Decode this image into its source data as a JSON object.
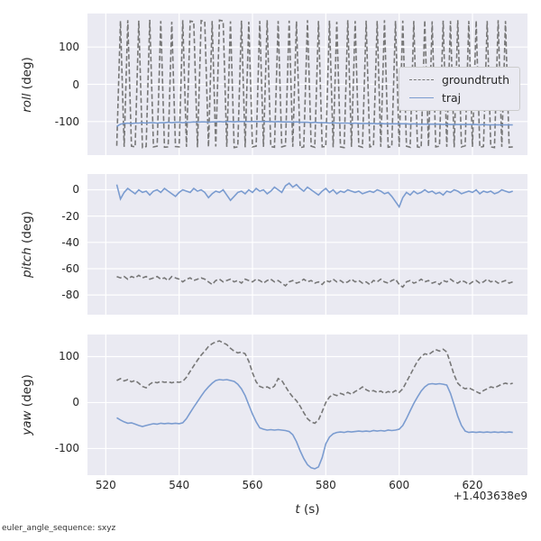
{
  "chart_data": {
    "type": "line",
    "xlabel": "t (s)",
    "xlabel_var": "t",
    "xlabel_rest": " (s)",
    "x_axis_offset": "+1.403638e9",
    "footer_annotation": "euler_angle_sequence: sxyz",
    "xlim": [
      515,
      635
    ],
    "xticks": [
      520,
      540,
      560,
      580,
      600,
      620
    ],
    "x_start": 523,
    "x_step": 1,
    "n_points": 109,
    "grid": true,
    "legend_entries": [
      "groundtruth",
      "traj"
    ],
    "legend_position": "center-right of roll subplot",
    "colors": {
      "groundtruth": "#777777",
      "traj": "#7b9cd0",
      "axes_background": "#eaeaf2",
      "grid": "#ffffff"
    },
    "styles": {
      "groundtruth": "dashed",
      "traj": "solid"
    },
    "subplots": [
      {
        "name": "roll",
        "ylabel": "roll (deg)",
        "ylabel_var": "roll",
        "ylabel_rest": " (deg)",
        "ylim": [
          -190,
          190
        ],
        "yticks": [
          100,
          0,
          -100
        ],
        "series": {
          "groundtruth": [
            -165,
            170,
            -168,
            172,
            -166,
            -168,
            171,
            -170,
            -167,
            173,
            -168,
            -166,
            170,
            -169,
            -168,
            168,
            -167,
            -168,
            172,
            -168,
            170,
            168,
            -169,
            171,
            169,
            -168,
            170,
            -167,
            172,
            170,
            -168,
            169,
            -170,
            -168,
            171,
            -169,
            168,
            -168,
            -166,
            170,
            -168,
            172,
            -167,
            -169,
            170,
            -168,
            -165,
            171,
            -168,
            169,
            -170,
            -168,
            172,
            -166,
            -169,
            170,
            -168,
            -167,
            171,
            -169,
            168,
            -168,
            -170,
            172,
            -168,
            170,
            -166,
            -169,
            171,
            -168,
            -165,
            170,
            -168,
            172,
            -169,
            -167,
            170,
            -168,
            171,
            -166,
            -169,
            170,
            -168,
            -170,
            172,
            -167,
            169,
            -168,
            -166,
            171,
            -168,
            170,
            -169,
            172,
            -168,
            -165,
            170,
            -168,
            171,
            -169,
            -167,
            170,
            -168,
            -170,
            172,
            -168,
            170,
            -169,
            -168
          ],
          "traj": [
            -113,
            -107,
            -105,
            -104,
            -105,
            -104,
            -104,
            -103,
            -104,
            -103,
            -103,
            -104,
            -103,
            -103,
            -102,
            -103,
            -102,
            -102,
            -103,
            -102,
            -102,
            -101,
            -102,
            -101,
            -101,
            -102,
            -101,
            -101,
            -100,
            -101,
            -100,
            -100,
            -101,
            -100,
            -100,
            -100,
            -100,
            -100,
            -100,
            -100,
            -100,
            -100,
            -100,
            -101,
            -100,
            -101,
            -101,
            -101,
            -102,
            -101,
            -102,
            -102,
            -102,
            -103,
            -102,
            -103,
            -103,
            -103,
            -104,
            -103,
            -104,
            -104,
            -104,
            -104,
            -105,
            -104,
            -105,
            -105,
            -105,
            -105,
            -105,
            -106,
            -105,
            -106,
            -106,
            -106,
            -106,
            -106,
            -106,
            -106,
            -107,
            -106,
            -107,
            -107,
            -107,
            -107,
            -107,
            -107,
            -107,
            -108,
            -107,
            -108,
            -108,
            -108,
            -108,
            -108,
            -108,
            -108,
            -108,
            -109,
            -108,
            -109,
            -109,
            -109,
            -109,
            -109,
            -109,
            -109,
            -109
          ]
        }
      },
      {
        "name": "pitch",
        "ylabel": "pitch (deg)",
        "ylabel_var": "pitch",
        "ylabel_rest": " (deg)",
        "ylim": [
          -95,
          12
        ],
        "yticks": [
          0,
          -20,
          -40,
          -60,
          -80
        ],
        "series": {
          "groundtruth": [
            -66,
            -67,
            -66,
            -68,
            -66,
            -67,
            -65,
            -67,
            -66,
            -68,
            -67,
            -66,
            -68,
            -67,
            -69,
            -66,
            -67,
            -68,
            -70,
            -68,
            -67,
            -69,
            -68,
            -67,
            -68,
            -70,
            -72,
            -69,
            -68,
            -70,
            -69,
            -68,
            -70,
            -69,
            -71,
            -68,
            -69,
            -70,
            -68,
            -69,
            -71,
            -69,
            -68,
            -70,
            -69,
            -71,
            -73,
            -70,
            -69,
            -71,
            -70,
            -68,
            -70,
            -69,
            -71,
            -70,
            -72,
            -69,
            -70,
            -68,
            -70,
            -69,
            -71,
            -70,
            -68,
            -70,
            -69,
            -71,
            -70,
            -72,
            -69,
            -70,
            -68,
            -70,
            -71,
            -69,
            -68,
            -72,
            -74,
            -70,
            -69,
            -71,
            -70,
            -68,
            -70,
            -69,
            -71,
            -70,
            -72,
            -69,
            -70,
            -68,
            -70,
            -71,
            -69,
            -70,
            -72,
            -70,
            -69,
            -71,
            -70,
            -68,
            -70,
            -69,
            -71,
            -70,
            -69,
            -71,
            -70
          ],
          "traj": [
            4,
            -7,
            -2,
            1,
            -1,
            -3,
            0,
            -2,
            -1,
            -4,
            -1,
            0,
            -2,
            1,
            -1,
            -3,
            -5,
            -2,
            0,
            -1,
            -2,
            1,
            -1,
            0,
            -2,
            -6,
            -3,
            -1,
            -2,
            0,
            -4,
            -8,
            -5,
            -2,
            -1,
            -3,
            0,
            -2,
            1,
            -1,
            0,
            -3,
            -1,
            2,
            0,
            -2,
            3,
            5,
            2,
            4,
            1,
            -1,
            2,
            0,
            -2,
            -4,
            -1,
            1,
            -2,
            0,
            -3,
            -1,
            -2,
            0,
            -1,
            -2,
            -1,
            -3,
            -2,
            -1,
            -2,
            0,
            -1,
            -3,
            -2,
            -5,
            -9,
            -13,
            -6,
            -2,
            -4,
            -1,
            -3,
            -2,
            0,
            -2,
            -1,
            -3,
            -2,
            -4,
            -1,
            -2,
            0,
            -1,
            -3,
            -2,
            -1,
            -2,
            0,
            -3,
            -1,
            -2,
            -1,
            -3,
            -2,
            0,
            -1,
            -2,
            -1
          ]
        }
      },
      {
        "name": "yaw",
        "ylabel": "yaw (deg)",
        "ylabel_var": "yaw",
        "ylabel_rest": " (deg)",
        "ylim": [
          -158,
          148
        ],
        "yticks": [
          100,
          0,
          -100
        ],
        "series": {
          "groundtruth": [
            48,
            52,
            47,
            50,
            45,
            48,
            42,
            35,
            32,
            40,
            45,
            43,
            46,
            44,
            45,
            43,
            45,
            44,
            46,
            55,
            68,
            80,
            92,
            103,
            112,
            122,
            128,
            132,
            134,
            130,
            126,
            118,
            112,
            108,
            110,
            106,
            90,
            65,
            45,
            35,
            32,
            34,
            30,
            36,
            52,
            48,
            35,
            22,
            12,
            4,
            -8,
            -22,
            -35,
            -42,
            -45,
            -38,
            -20,
            0,
            12,
            18,
            15,
            20,
            17,
            22,
            18,
            24,
            28,
            34,
            28,
            24,
            26,
            22,
            25,
            20,
            24,
            21,
            26,
            22,
            30,
            45,
            60,
            75,
            90,
            100,
            106,
            104,
            110,
            115,
            112,
            116,
            110,
            85,
            60,
            42,
            34,
            30,
            32,
            28,
            24,
            20,
            26,
            30,
            34,
            32,
            36,
            40,
            42,
            40,
            42
          ],
          "traj": [
            -33,
            -38,
            -42,
            -45,
            -44,
            -47,
            -50,
            -52,
            -50,
            -48,
            -46,
            -47,
            -45,
            -46,
            -45,
            -46,
            -45,
            -46,
            -44,
            -35,
            -22,
            -10,
            2,
            14,
            25,
            34,
            42,
            48,
            50,
            49,
            50,
            48,
            46,
            40,
            30,
            15,
            -5,
            -25,
            -42,
            -55,
            -58,
            -60,
            -59,
            -60,
            -59,
            -60,
            -61,
            -63,
            -70,
            -85,
            -105,
            -122,
            -135,
            -142,
            -144,
            -140,
            -120,
            -90,
            -75,
            -68,
            -65,
            -64,
            -65,
            -63,
            -64,
            -63,
            -62,
            -63,
            -62,
            -63,
            -61,
            -62,
            -61,
            -62,
            -60,
            -61,
            -60,
            -58,
            -50,
            -35,
            -18,
            -2,
            12,
            25,
            34,
            40,
            41,
            40,
            41,
            40,
            38,
            20,
            -5,
            -30,
            -50,
            -62,
            -65,
            -64,
            -65,
            -64,
            -65,
            -64,
            -65,
            -64,
            -65,
            -64,
            -65,
            -64,
            -65
          ]
        }
      }
    ]
  }
}
